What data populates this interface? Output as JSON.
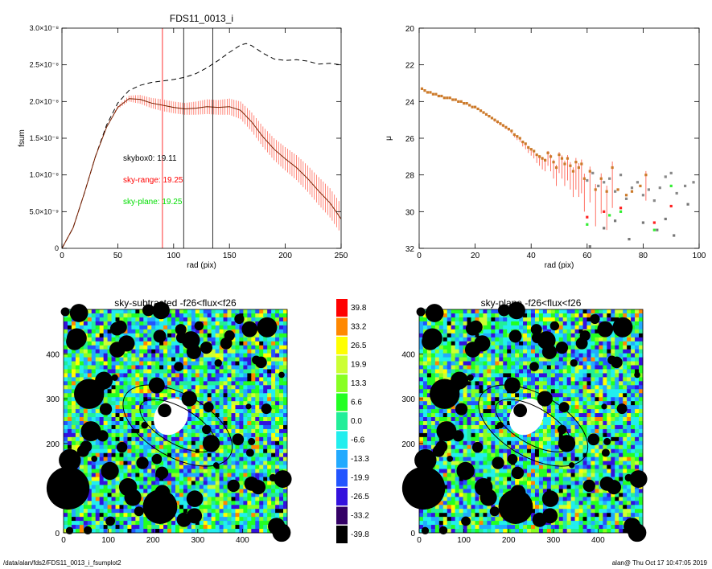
{
  "footer": {
    "path": "/data/alan/fds2/FDS11_0013_i_fsumplot2",
    "stamp": "alan@  Thu Oct 17 10:47:05 2019"
  },
  "chart_data": [
    {
      "id": "fsum",
      "type": "line",
      "title": "FDS11_0013_i",
      "xlabel": "rad (pix)",
      "ylabel": "fsum",
      "xlim": [
        0,
        250
      ],
      "ylim": [
        0,
        3e-08
      ],
      "xticks": [
        "0",
        "50",
        "100",
        "150",
        "200",
        "250"
      ],
      "yticks": [
        "0",
        "5.0×10⁻⁹",
        "1.0×10⁻⁸",
        "1.5×10⁻⁸",
        "2.0×10⁻⁸",
        "2.5×10⁻⁸",
        "3.0×10⁻⁸"
      ],
      "annotations": [
        {
          "text": "skybox0: 19.11",
          "color": "#000000"
        },
        {
          "text": "sky-range: 19.25",
          "color": "#ff0000"
        },
        {
          "text": "sky-plane: 19.25",
          "color": "#00dd00"
        }
      ],
      "vlines": [
        {
          "x": 90,
          "color": "#ff0000"
        },
        {
          "x": 109,
          "color": "#000000"
        },
        {
          "x": 135,
          "color": "#000000"
        }
      ],
      "series": [
        {
          "style": "dashed",
          "color": "#000000",
          "x": [
            0,
            10,
            20,
            30,
            40,
            50,
            60,
            70,
            80,
            90,
            100,
            110,
            120,
            130,
            140,
            150,
            160,
            165,
            170,
            180,
            190,
            200,
            210,
            220,
            230,
            240,
            250
          ],
          "y": [
            0,
            2.8e-09,
            7.5e-09,
            1.25e-08,
            1.68e-08,
            1.98e-08,
            2.15e-08,
            2.22e-08,
            2.26e-08,
            2.28e-08,
            2.3e-08,
            2.33e-08,
            2.38e-08,
            2.46e-08,
            2.56e-08,
            2.67e-08,
            2.77e-08,
            2.79e-08,
            2.76e-08,
            2.66e-08,
            2.58e-08,
            2.56e-08,
            2.57e-08,
            2.55e-08,
            2.51e-08,
            2.52e-08,
            2.5e-08
          ]
        },
        {
          "style": "solid",
          "color": "#7a2000",
          "error_color": "#ff6a5a",
          "x": [
            0,
            10,
            20,
            30,
            40,
            50,
            60,
            70,
            80,
            90,
            100,
            110,
            120,
            130,
            140,
            150,
            160,
            170,
            180,
            190,
            200,
            210,
            220,
            230,
            240,
            250
          ],
          "y": [
            0,
            2.8e-09,
            7.5e-09,
            1.25e-08,
            1.65e-08,
            1.92e-08,
            2.04e-08,
            2.03e-08,
            1.98e-08,
            1.95e-08,
            1.92e-08,
            1.9e-08,
            1.91e-08,
            1.93e-08,
            1.92e-08,
            1.93e-08,
            1.88e-08,
            1.72e-08,
            1.52e-08,
            1.35e-08,
            1.22e-08,
            1.1e-08,
            9.5e-09,
            7.8e-09,
            6.2e-09,
            4e-09
          ],
          "err": [
            0,
            0,
            0,
            0,
            0,
            2e-10,
            4e-10,
            6e-10,
            7e-10,
            8e-10,
            8e-10,
            8e-10,
            9e-10,
            1e-09,
            1e-09,
            1.1e-09,
            1.2e-09,
            1.3e-09,
            1.4e-09,
            1.5e-09,
            1.6e-09,
            1.7e-09,
            1.8e-09,
            1.9e-09,
            2e-09,
            2e-09
          ]
        }
      ]
    },
    {
      "id": "mu",
      "type": "scatter",
      "title": "",
      "xlabel": "rad (pix)",
      "ylabel": "μ",
      "xlim": [
        0,
        100
      ],
      "ylim": [
        32,
        20
      ],
      "xticks": [
        "0",
        "20",
        "40",
        "60",
        "80",
        "100"
      ],
      "yticks": [
        "20",
        "22",
        "24",
        "26",
        "28",
        "30",
        "32"
      ],
      "series": [
        {
          "name": "",
          "color": "#cc7a2a",
          "x": [
            1,
            2,
            3,
            4,
            5,
            6,
            7,
            8,
            9,
            10,
            11,
            12,
            13,
            14,
            15,
            16,
            17,
            18,
            19,
            20,
            21,
            22,
            23,
            24,
            25,
            26,
            27,
            28,
            29,
            30,
            31,
            32,
            33,
            34,
            35,
            36,
            37,
            38,
            39,
            40,
            41,
            42,
            43,
            44,
            45,
            46,
            47,
            48,
            49,
            50,
            51,
            52,
            53,
            54,
            55,
            56,
            57,
            58,
            59,
            61,
            63,
            65,
            67,
            69,
            71,
            74,
            76,
            79,
            81
          ],
          "y": [
            23.3,
            23.4,
            23.5,
            23.5,
            23.6,
            23.6,
            23.7,
            23.7,
            23.8,
            23.8,
            23.8,
            23.9,
            23.9,
            24.0,
            24.0,
            24.1,
            24.1,
            24.2,
            24.3,
            24.3,
            24.4,
            24.5,
            24.6,
            24.7,
            24.8,
            24.9,
            25.0,
            25.1,
            25.2,
            25.3,
            25.4,
            25.5,
            25.6,
            25.8,
            25.9,
            26.0,
            26.2,
            26.3,
            26.5,
            26.6,
            26.7,
            26.9,
            27.0,
            27.1,
            27.2,
            26.8,
            27.0,
            27.3,
            27.6,
            26.9,
            27.1,
            27.4,
            27.1,
            27.5,
            27.8,
            27.3,
            27.6,
            27.4,
            28.2,
            27.8,
            28.8,
            28.2,
            28.9,
            27.6,
            28.8,
            29.1,
            28.9,
            28.6,
            28.0
          ],
          "err": [
            0,
            0,
            0,
            0,
            0,
            0,
            0,
            0,
            0,
            0,
            0,
            0,
            0,
            0,
            0,
            0,
            0,
            0,
            0,
            0,
            0,
            0,
            0,
            0,
            0,
            0,
            0.1,
            0.1,
            0.1,
            0.1,
            0.1,
            0.1,
            0.15,
            0.15,
            0.2,
            0.2,
            0.25,
            0.3,
            0.3,
            0.35,
            0.4,
            0.45,
            0.5,
            0.6,
            0.6,
            0.7,
            0.8,
            0.9,
            1.0,
            1.0,
            1.1,
            1.2,
            1.2,
            1.3,
            1.4,
            1.5,
            1.6,
            1.6,
            1.8,
            1.7,
            2.0,
            1.9,
            2.1,
            2.2,
            0,
            0,
            0,
            0,
            1.4
          ]
        },
        {
          "name": "",
          "color": "#888888",
          "x": [
            60,
            62,
            64,
            66,
            68,
            70,
            72,
            74,
            76,
            78,
            80,
            82,
            84,
            86,
            88,
            90,
            92,
            95,
            98
          ],
          "y": [
            28.3,
            27.9,
            28.6,
            28.4,
            28.2,
            28.9,
            28.0,
            29.3,
            28.7,
            28.4,
            29.1,
            28.8,
            29.4,
            28.7,
            28.1,
            27.9,
            29.0,
            28.6,
            28.4
          ]
        },
        {
          "name": "",
          "color": "#ff2020",
          "x": [
            60,
            66,
            72,
            84,
            90
          ],
          "y": [
            30.3,
            30.0,
            29.8,
            30.6,
            29.7
          ]
        },
        {
          "name": "",
          "color": "#33ee33",
          "x": [
            60,
            68,
            72,
            84,
            90
          ],
          "y": [
            30.7,
            30.2,
            30.0,
            31.0,
            28.6
          ]
        },
        {
          "name": "",
          "color": "#777777",
          "x": [
            61,
            66,
            70,
            75,
            80,
            85,
            88,
            91,
            96
          ],
          "y": [
            31.9,
            30.9,
            30.5,
            31.5,
            30.6,
            31.0,
            30.4,
            31.3,
            29.6
          ]
        }
      ]
    },
    {
      "id": "map1",
      "type": "heatmap",
      "title": "sky-subtracted -f26<flux<f26",
      "xlim": [
        0,
        500
      ],
      "ylim": [
        0,
        500
      ],
      "xticks": [
        "0",
        "100",
        "200",
        "300",
        "400"
      ],
      "yticks": [
        "0",
        "100",
        "200",
        "300",
        "400"
      ]
    },
    {
      "id": "map2",
      "type": "heatmap",
      "title": "sky-plane -f26<flux<f26",
      "xlim": [
        0,
        500
      ],
      "ylim": [
        0,
        500
      ],
      "xticks": [
        "0",
        "100",
        "200",
        "300",
        "400"
      ],
      "yticks": [
        "0",
        "100",
        "200",
        "300",
        "400"
      ]
    },
    {
      "id": "colorbar",
      "type": "table",
      "levels": [
        {
          "label": "39.8",
          "color": "#ff0000"
        },
        {
          "label": "33.2",
          "color": "#ff8800"
        },
        {
          "label": "26.5",
          "color": "#ffff00"
        },
        {
          "label": "19.9",
          "color": "#ccff33"
        },
        {
          "label": "13.3",
          "color": "#88ff22"
        },
        {
          "label": "6.6",
          "color": "#22ff22"
        },
        {
          "label": "0.0",
          "color": "#22ee99"
        },
        {
          "label": "-6.6",
          "color": "#22eeee"
        },
        {
          "label": "-13.3",
          "color": "#22aaff"
        },
        {
          "label": "-19.9",
          "color": "#2255ff"
        },
        {
          "label": "-26.5",
          "color": "#3311dd"
        },
        {
          "label": "-33.2",
          "color": "#330066"
        },
        {
          "label": "-39.8",
          "color": "#000000"
        }
      ]
    }
  ]
}
